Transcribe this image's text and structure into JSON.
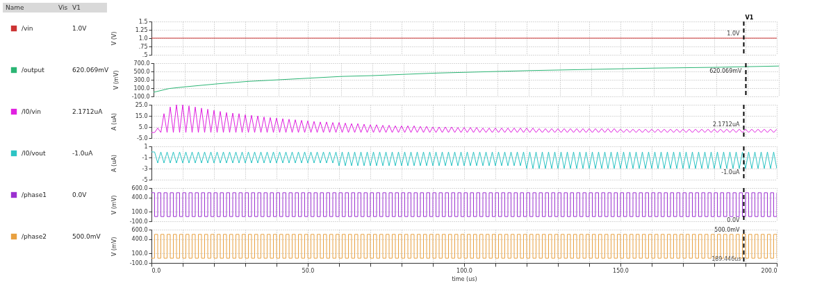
{
  "chart_data": [
    {
      "type": "line",
      "ylabel": "V (V)",
      "legend": "left",
      "grid": true,
      "tick_labels": "y",
      "xlim": [
        0,
        200
      ],
      "ylim": [
        0.5,
        1.5
      ],
      "xticks": [
        0,
        10,
        20,
        30,
        40,
        50,
        60,
        70,
        80,
        90,
        100,
        110,
        120,
        130,
        140,
        150,
        160,
        170,
        180,
        190,
        200
      ],
      "yticks": [
        1.5,
        1.25,
        {
          "value": 1.0,
          "label": "1.0"
        },
        {
          "value": 0.75,
          "label": ".75"
        },
        {
          "value": 0.5,
          "label": ".5"
        }
      ],
      "series": [
        {
          "name": "/vin",
          "color": "#cc3333",
          "x": [
            0,
            200
          ],
          "values": [
            1.0,
            1.0
          ]
        }
      ],
      "ref_lines": [
        {
          "axis": "x",
          "value": 189.446,
          "label": "V1",
          "color": "#000000",
          "line_style": "dashed"
        }
      ],
      "annotations": [
        "Name",
        "Vis",
        "V1",
        "1.0V"
      ]
    },
    {
      "type": "line",
      "ylabel": "V (mV)",
      "legend": "left",
      "grid": true,
      "tick_labels": "y",
      "xlim": [
        0,
        200
      ],
      "ylim": [
        -100,
        700
      ],
      "xticks": [
        0,
        10,
        20,
        30,
        40,
        50,
        60,
        70,
        80,
        90,
        100,
        110,
        120,
        130,
        140,
        150,
        160,
        170,
        180,
        190,
        200
      ],
      "yticks": [
        {
          "value": 700,
          "label": "700.0"
        },
        {
          "value": 500,
          "label": "500.0"
        },
        {
          "value": 300,
          "label": "300.0"
        },
        {
          "value": 100,
          "label": "100.0"
        },
        {
          "value": -100,
          "label": "-100.0"
        }
      ],
      "series": [
        {
          "name": "/output",
          "color": "#2bb574",
          "x": [
            0,
            5,
            10,
            20,
            30,
            40,
            50,
            60,
            70,
            80,
            90,
            100,
            120,
            140,
            160,
            180,
            200
          ],
          "values": [
            0,
            90,
            130,
            200,
            260,
            300,
            340,
            380,
            400,
            430,
            460,
            480,
            520,
            550,
            580,
            600,
            630
          ]
        }
      ],
      "ref_lines": [
        {
          "axis": "x",
          "value": 189.446,
          "color": "#000000",
          "line_style": "dashed"
        }
      ],
      "annotations": [
        "620.069mV"
      ]
    },
    {
      "type": "line",
      "ylabel": "A (uA)",
      "legend": "left",
      "grid": true,
      "tick_labels": "y",
      "xlim": [
        0,
        200
      ],
      "ylim": [
        -5,
        25
      ],
      "xticks": [
        0,
        10,
        20,
        30,
        40,
        50,
        60,
        70,
        80,
        90,
        100,
        110,
        120,
        130,
        140,
        150,
        160,
        170,
        180,
        190,
        200
      ],
      "yticks": [
        {
          "value": 25,
          "label": "25.0"
        },
        {
          "value": 15,
          "label": "15.0"
        },
        {
          "value": 5,
          "label": "5.0"
        },
        {
          "value": -5,
          "label": "-5.0"
        }
      ],
      "x": [
        0,
        1,
        2,
        3,
        4,
        5,
        6,
        7,
        8,
        9,
        10,
        11,
        12,
        13,
        14,
        15,
        16,
        17,
        18,
        19,
        20,
        21,
        22,
        23,
        24,
        25,
        26,
        27,
        28,
        29,
        30,
        31,
        32,
        33,
        34,
        35,
        36,
        37,
        38,
        39,
        40,
        41,
        42,
        43,
        44,
        45,
        46,
        47,
        48,
        49,
        50,
        51,
        52,
        53,
        54,
        55,
        56,
        57,
        58,
        59,
        60,
        61,
        62,
        63,
        64,
        65,
        66,
        67,
        68,
        69,
        70,
        71,
        72,
        73,
        74,
        75,
        76,
        77,
        78,
        79,
        80,
        81,
        82,
        83,
        84,
        85,
        86,
        87,
        88,
        89,
        90,
        91,
        92,
        93,
        94,
        95,
        96,
        97,
        98,
        99,
        100,
        101,
        102,
        103,
        104,
        105,
        106,
        107,
        108,
        109,
        110,
        111,
        112,
        113,
        114,
        115,
        116,
        117,
        118,
        119,
        120,
        121,
        122,
        123,
        124,
        125,
        126,
        127,
        128,
        129,
        130,
        131,
        132,
        133,
        134,
        135,
        136,
        137,
        138,
        139,
        140,
        141,
        142,
        143,
        144,
        145,
        146,
        147,
        148,
        149,
        150,
        151,
        152,
        153,
        154,
        155,
        156,
        157,
        158,
        159,
        160,
        161,
        162,
        163,
        164,
        165,
        166,
        167,
        168,
        169,
        170,
        171,
        172,
        173,
        174,
        175,
        176,
        177,
        178,
        179,
        180,
        181,
        182,
        183,
        184,
        185,
        186,
        187,
        188,
        189,
        190,
        191,
        192,
        193,
        194,
        195,
        196,
        197,
        198,
        199,
        200
      ],
      "series": [
        {
          "name": "/I0/vin",
          "color": "#e020e0",
          "values": [
            0,
            0,
            4,
            0,
            17,
            0,
            23,
            0,
            25,
            0,
            25,
            0,
            24,
            0,
            23,
            0,
            22,
            0,
            21,
            0,
            20,
            0,
            19,
            0,
            18,
            0,
            17.5,
            0,
            17,
            0,
            16,
            0,
            15.5,
            0,
            15,
            0,
            14,
            0,
            13.5,
            0,
            13,
            0,
            12.5,
            0,
            12,
            0,
            11.5,
            0,
            11,
            0,
            10.5,
            0,
            10,
            0,
            9.5,
            0,
            9.5,
            0,
            9,
            0,
            9,
            0,
            8.5,
            0,
            8,
            0,
            8,
            0,
            7.5,
            0,
            7,
            0,
            7,
            0,
            6.5,
            0,
            6.5,
            0,
            6,
            0,
            6,
            0,
            6,
            0,
            6,
            0,
            5.5,
            0,
            5.5,
            0,
            5,
            0,
            5,
            0,
            5,
            0,
            5,
            0,
            4.5,
            0,
            4.5,
            0,
            4.5,
            0,
            4.5,
            0,
            4,
            0,
            4,
            0,
            4,
            0,
            4,
            0,
            4,
            0,
            4,
            0,
            4,
            0,
            4,
            0,
            4,
            0,
            3.5,
            0,
            3.5,
            0,
            3.5,
            0,
            3.5,
            0,
            3.5,
            0,
            3.5,
            0,
            3.5,
            0,
            3.5,
            0,
            3.5,
            0,
            3.5,
            0,
            3.5,
            0,
            3.5,
            0,
            3.5,
            0,
            3,
            0,
            3,
            0,
            3,
            0,
            3,
            0,
            3,
            0,
            3,
            0,
            3,
            0,
            3,
            0,
            3,
            0,
            3,
            0,
            3,
            0,
            3,
            0,
            3,
            0,
            3,
            0,
            3,
            0,
            3,
            0,
            3,
            0,
            3,
            0,
            3,
            0,
            3,
            0,
            3,
            0,
            3,
            0,
            3,
            0,
            3,
            0,
            3,
            0,
            3
          ]
        }
      ],
      "ref_lines": [
        {
          "axis": "x",
          "value": 189.446,
          "color": "#000000",
          "line_style": "dashed"
        }
      ],
      "annotations": [
        "2.1712uA"
      ]
    },
    {
      "type": "line",
      "ylabel": "A (uA)",
      "legend": "left",
      "grid": true,
      "tick_labels": "y",
      "xlim": [
        0,
        200
      ],
      "ylim": [
        -5,
        1
      ],
      "xticks": [
        0,
        10,
        20,
        30,
        40,
        50,
        60,
        70,
        80,
        90,
        100,
        110,
        120,
        130,
        140,
        150,
        160,
        170,
        180,
        190,
        200
      ],
      "yticks": [
        1,
        -1,
        -3,
        -5
      ],
      "x": [
        0,
        1,
        2,
        3,
        4,
        5,
        6,
        7,
        8,
        9,
        10,
        11,
        12,
        13,
        14,
        15,
        16,
        17,
        18,
        19,
        20,
        21,
        22,
        23,
        24,
        25,
        26,
        27,
        28,
        29,
        30,
        31,
        32,
        33,
        34,
        35,
        36,
        37,
        38,
        39,
        40,
        41,
        42,
        43,
        44,
        45,
        46,
        47,
        48,
        49,
        50,
        51,
        52,
        53,
        54,
        55,
        56,
        57,
        58,
        59,
        60,
        61,
        62,
        63,
        64,
        65,
        66,
        67,
        68,
        69,
        70,
        71,
        72,
        73,
        74,
        75,
        76,
        77,
        78,
        79,
        80,
        81,
        82,
        83,
        84,
        85,
        86,
        87,
        88,
        89,
        90,
        91,
        92,
        93,
        94,
        95,
        96,
        97,
        98,
        99,
        100,
        101,
        102,
        103,
        104,
        105,
        106,
        107,
        108,
        109,
        110,
        111,
        112,
        113,
        114,
        115,
        116,
        117,
        118,
        119,
        120,
        121,
        122,
        123,
        124,
        125,
        126,
        127,
        128,
        129,
        130,
        131,
        132,
        133,
        134,
        135,
        136,
        137,
        138,
        139,
        140,
        141,
        142,
        143,
        144,
        145,
        146,
        147,
        148,
        149,
        150,
        151,
        152,
        153,
        154,
        155,
        156,
        157,
        158,
        159,
        160,
        161,
        162,
        163,
        164,
        165,
        166,
        167,
        168,
        169,
        170,
        171,
        172,
        173,
        174,
        175,
        176,
        177,
        178,
        179,
        180,
        181,
        182,
        183,
        184,
        185,
        186,
        187,
        188,
        189,
        190,
        191,
        192,
        193,
        194,
        195,
        196,
        197,
        198,
        199,
        200
      ],
      "series": [
        {
          "name": "/I0/vout",
          "color": "#2cc4c4",
          "values": [
            0,
            0,
            -2,
            0,
            -2,
            0,
            -2,
            0,
            -2,
            0,
            -2,
            0,
            -2,
            0,
            -2,
            0,
            -2,
            0,
            -2,
            0,
            -2,
            0,
            -2,
            0,
            -2,
            0,
            -2,
            0,
            -2,
            0,
            -2,
            0,
            -2,
            0,
            -2,
            0,
            -2,
            0,
            -2,
            0,
            -2,
            0,
            -2,
            0,
            -2,
            0,
            -2,
            0,
            -2,
            0,
            -2,
            0,
            -2,
            0,
            -2,
            0,
            -2,
            0,
            -2,
            0,
            -2.5,
            0,
            -2.5,
            0,
            -2.5,
            0,
            -2.5,
            0,
            -2.5,
            0,
            -2.5,
            0,
            -2.5,
            0,
            -2.5,
            0,
            -2.5,
            0,
            -2.5,
            0,
            -2.5,
            0,
            -2.5,
            0,
            -2.5,
            0,
            -2.5,
            0,
            -2.5,
            0,
            -2.5,
            0,
            -2.5,
            0,
            -2.5,
            0,
            -2.5,
            0,
            -2.5,
            0,
            -2.5,
            0,
            -2.5,
            0,
            -2.5,
            0,
            -2.5,
            0,
            -2.5,
            0,
            -2.5,
            0,
            -2.5,
            0,
            -2.5,
            0,
            -2.5,
            0,
            -2.5,
            0,
            -3,
            0,
            -3,
            0,
            -3,
            0,
            -3,
            0,
            -3,
            0,
            -3,
            0,
            -3,
            0,
            -3,
            0,
            -3,
            0,
            -3,
            0,
            -3,
            0,
            -3,
            0,
            -3,
            0,
            -3,
            0,
            -3,
            0,
            -3,
            0,
            -3,
            0,
            -3,
            0,
            -3,
            0,
            -3,
            0,
            -3,
            0,
            -3,
            0,
            -3,
            0,
            -3,
            0,
            -3,
            0,
            -3,
            0,
            -3,
            0,
            -3,
            0,
            -3,
            0,
            -3,
            0,
            -3,
            0,
            -3,
            0,
            -3,
            0,
            -3,
            0,
            -3,
            0,
            -3,
            0,
            -3,
            0,
            -3,
            0,
            -3,
            0,
            -3,
            0,
            -3
          ]
        }
      ],
      "ref_lines": [
        {
          "axis": "x",
          "value": 189.446,
          "color": "#000000",
          "line_style": "dashed"
        }
      ],
      "annotations": [
        "-1.0uA"
      ]
    },
    {
      "type": "step",
      "ylabel": "V (mV)",
      "legend": "left",
      "grid": true,
      "tick_labels": "y",
      "xlim": [
        0,
        200
      ],
      "ylim": [
        -100,
        600
      ],
      "xticks": [
        0,
        10,
        20,
        30,
        40,
        50,
        60,
        70,
        80,
        90,
        100,
        110,
        120,
        130,
        140,
        150,
        160,
        170,
        180,
        190,
        200
      ],
      "yticks": [
        {
          "value": 600,
          "label": "600.0"
        },
        {
          "value": 400,
          "label": "400.0"
        },
        {
          "value": 100,
          "label": "100.0"
        },
        {
          "value": -100,
          "label": "-100.0"
        }
      ],
      "x": [
        0,
        1,
        2,
        3,
        4,
        5,
        6,
        7,
        8,
        9,
        10,
        11,
        12,
        13,
        14,
        15,
        16,
        17,
        18,
        19,
        20,
        21,
        22,
        23,
        24,
        25,
        26,
        27,
        28,
        29,
        30,
        31,
        32,
        33,
        34,
        35,
        36,
        37,
        38,
        39,
        40,
        41,
        42,
        43,
        44,
        45,
        46,
        47,
        48,
        49,
        50,
        51,
        52,
        53,
        54,
        55,
        56,
        57,
        58,
        59,
        60,
        61,
        62,
        63,
        64,
        65,
        66,
        67,
        68,
        69,
        70,
        71,
        72,
        73,
        74,
        75,
        76,
        77,
        78,
        79,
        80,
        81,
        82,
        83,
        84,
        85,
        86,
        87,
        88,
        89,
        90,
        91,
        92,
        93,
        94,
        95,
        96,
        97,
        98,
        99,
        100,
        101,
        102,
        103,
        104,
        105,
        106,
        107,
        108,
        109,
        110,
        111,
        112,
        113,
        114,
        115,
        116,
        117,
        118,
        119,
        120,
        121,
        122,
        123,
        124,
        125,
        126,
        127,
        128,
        129,
        130,
        131,
        132,
        133,
        134,
        135,
        136,
        137,
        138,
        139,
        140,
        141,
        142,
        143,
        144,
        145,
        146,
        147,
        148,
        149,
        150,
        151,
        152,
        153,
        154,
        155,
        156,
        157,
        158,
        159,
        160,
        161,
        162,
        163,
        164,
        165,
        166,
        167,
        168,
        169,
        170,
        171,
        172,
        173,
        174,
        175,
        176,
        177,
        178,
        179,
        180,
        181,
        182,
        183,
        184,
        185,
        186,
        187,
        188,
        189,
        190,
        191,
        192,
        193,
        194,
        195,
        196,
        197,
        198,
        199,
        200
      ],
      "series": [
        {
          "name": "/phase1",
          "color": "#9b30d0",
          "values": [
            500,
            0,
            500,
            0,
            500,
            0,
            500,
            0,
            500,
            0,
            500,
            0,
            500,
            0,
            500,
            0,
            500,
            0,
            500,
            0,
            500,
            0,
            500,
            0,
            500,
            0,
            500,
            0,
            500,
            0,
            500,
            0,
            500,
            0,
            500,
            0,
            500,
            0,
            500,
            0,
            500,
            0,
            500,
            0,
            500,
            0,
            500,
            0,
            500,
            0,
            500,
            0,
            500,
            0,
            500,
            0,
            500,
            0,
            500,
            0,
            500,
            0,
            500,
            0,
            500,
            0,
            500,
            0,
            500,
            0,
            500,
            0,
            500,
            0,
            500,
            0,
            500,
            0,
            500,
            0,
            500,
            0,
            500,
            0,
            500,
            0,
            500,
            0,
            500,
            0,
            500,
            0,
            500,
            0,
            500,
            0,
            500,
            0,
            500,
            0,
            500,
            0,
            500,
            0,
            500,
            0,
            500,
            0,
            500,
            0,
            500,
            0,
            500,
            0,
            500,
            0,
            500,
            0,
            500,
            0,
            500,
            0,
            500,
            0,
            500,
            0,
            500,
            0,
            500,
            0,
            500,
            0,
            500,
            0,
            500,
            0,
            500,
            0,
            500,
            0,
            500,
            0,
            500,
            0,
            500,
            0,
            500,
            0,
            500,
            0,
            500,
            0,
            500,
            0,
            500,
            0,
            500,
            0,
            500,
            0,
            500,
            0,
            500,
            0,
            500,
            0,
            500,
            0,
            500,
            0,
            500,
            0,
            500,
            0,
            500,
            0,
            500,
            0,
            500,
            0,
            500,
            0,
            500,
            0,
            500,
            0,
            500,
            0,
            500,
            0,
            500,
            0,
            500,
            0,
            500,
            0,
            500,
            0,
            500,
            0,
            500
          ]
        }
      ],
      "ref_lines": [
        {
          "axis": "x",
          "value": 189.446,
          "color": "#000000",
          "line_style": "dashed"
        }
      ],
      "annotations": [
        "0.0V"
      ]
    },
    {
      "type": "step",
      "ylabel": "V (mV)",
      "xlabel": "time (us)",
      "legend": "left",
      "grid": true,
      "xlim": [
        0,
        200
      ],
      "ylim": [
        -100,
        600
      ],
      "xticks": [
        {
          "value": 0,
          "label": "0.0"
        },
        {
          "value": 10,
          "label": null
        },
        {
          "value": 20,
          "label": null
        },
        {
          "value": 30,
          "label": null
        },
        {
          "value": 40,
          "label": null
        },
        {
          "value": 50,
          "label": "50.0"
        },
        {
          "value": 60,
          "label": null
        },
        {
          "value": 70,
          "label": null
        },
        {
          "value": 80,
          "label": null
        },
        {
          "value": 90,
          "label": null
        },
        {
          "value": 100,
          "label": "100.0"
        },
        {
          "value": 110,
          "label": null
        },
        {
          "value": 120,
          "label": null
        },
        {
          "value": 130,
          "label": null
        },
        {
          "value": 140,
          "label": null
        },
        {
          "value": 150,
          "label": "150.0"
        },
        {
          "value": 160,
          "label": null
        },
        {
          "value": 170,
          "label": null
        },
        {
          "value": 180,
          "label": null
        },
        {
          "value": 190,
          "label": null
        },
        {
          "value": 200,
          "label": "200.0"
        }
      ],
      "yticks": [
        {
          "value": 600,
          "label": "600.0"
        },
        {
          "value": 400,
          "label": "400.0"
        },
        {
          "value": 100,
          "label": "100.0"
        },
        {
          "value": -100,
          "label": "-100.0"
        }
      ],
      "x": [
        0,
        1,
        2,
        3,
        4,
        5,
        6,
        7,
        8,
        9,
        10,
        11,
        12,
        13,
        14,
        15,
        16,
        17,
        18,
        19,
        20,
        21,
        22,
        23,
        24,
        25,
        26,
        27,
        28,
        29,
        30,
        31,
        32,
        33,
        34,
        35,
        36,
        37,
        38,
        39,
        40,
        41,
        42,
        43,
        44,
        45,
        46,
        47,
        48,
        49,
        50,
        51,
        52,
        53,
        54,
        55,
        56,
        57,
        58,
        59,
        60,
        61,
        62,
        63,
        64,
        65,
        66,
        67,
        68,
        69,
        70,
        71,
        72,
        73,
        74,
        75,
        76,
        77,
        78,
        79,
        80,
        81,
        82,
        83,
        84,
        85,
        86,
        87,
        88,
        89,
        90,
        91,
        92,
        93,
        94,
        95,
        96,
        97,
        98,
        99,
        100,
        101,
        102,
        103,
        104,
        105,
        106,
        107,
        108,
        109,
        110,
        111,
        112,
        113,
        114,
        115,
        116,
        117,
        118,
        119,
        120,
        121,
        122,
        123,
        124,
        125,
        126,
        127,
        128,
        129,
        130,
        131,
        132,
        133,
        134,
        135,
        136,
        137,
        138,
        139,
        140,
        141,
        142,
        143,
        144,
        145,
        146,
        147,
        148,
        149,
        150,
        151,
        152,
        153,
        154,
        155,
        156,
        157,
        158,
        159,
        160,
        161,
        162,
        163,
        164,
        165,
        166,
        167,
        168,
        169,
        170,
        171,
        172,
        173,
        174,
        175,
        176,
        177,
        178,
        179,
        180,
        181,
        182,
        183,
        184,
        185,
        186,
        187,
        188,
        189,
        190,
        191,
        192,
        193,
        194,
        195,
        196,
        197,
        198,
        199,
        200
      ],
      "series": [
        {
          "name": "/phase2",
          "color": "#e8a040",
          "values": [
            0,
            500,
            0,
            500,
            0,
            500,
            0,
            500,
            0,
            500,
            0,
            500,
            0,
            500,
            0,
            500,
            0,
            500,
            0,
            500,
            0,
            500,
            0,
            500,
            0,
            500,
            0,
            500,
            0,
            500,
            0,
            500,
            0,
            500,
            0,
            500,
            0,
            500,
            0,
            500,
            0,
            500,
            0,
            500,
            0,
            500,
            0,
            500,
            0,
            500,
            0,
            500,
            0,
            500,
            0,
            500,
            0,
            500,
            0,
            500,
            0,
            500,
            0,
            500,
            0,
            500,
            0,
            500,
            0,
            500,
            0,
            500,
            0,
            500,
            0,
            500,
            0,
            500,
            0,
            500,
            0,
            500,
            0,
            500,
            0,
            500,
            0,
            500,
            0,
            500,
            0,
            500,
            0,
            500,
            0,
            500,
            0,
            500,
            0,
            500,
            0,
            500,
            0,
            500,
            0,
            500,
            0,
            500,
            0,
            500,
            0,
            500,
            0,
            500,
            0,
            500,
            0,
            500,
            0,
            500,
            0,
            500,
            0,
            500,
            0,
            500,
            0,
            500,
            0,
            500,
            0,
            500,
            0,
            500,
            0,
            500,
            0,
            500,
            0,
            500,
            0,
            500,
            0,
            500,
            0,
            500,
            0,
            500,
            0,
            500,
            0,
            500,
            0,
            500,
            0,
            500,
            0,
            500,
            0,
            500,
            0,
            500,
            0,
            500,
            0,
            500,
            0,
            500,
            0,
            500,
            0,
            500,
            0,
            500,
            0,
            500,
            0,
            500,
            0,
            500,
            0,
            500,
            0,
            500,
            0,
            500,
            0,
            500,
            0,
            500,
            0,
            500,
            0,
            500,
            0,
            500,
            0,
            500,
            0,
            500,
            0
          ]
        }
      ],
      "ref_lines": [
        {
          "axis": "x",
          "value": 189.446,
          "label": "189.446us",
          "color": "#000000",
          "line_style": "dashed"
        }
      ],
      "annotations": [
        "500.0mV"
      ]
    }
  ]
}
